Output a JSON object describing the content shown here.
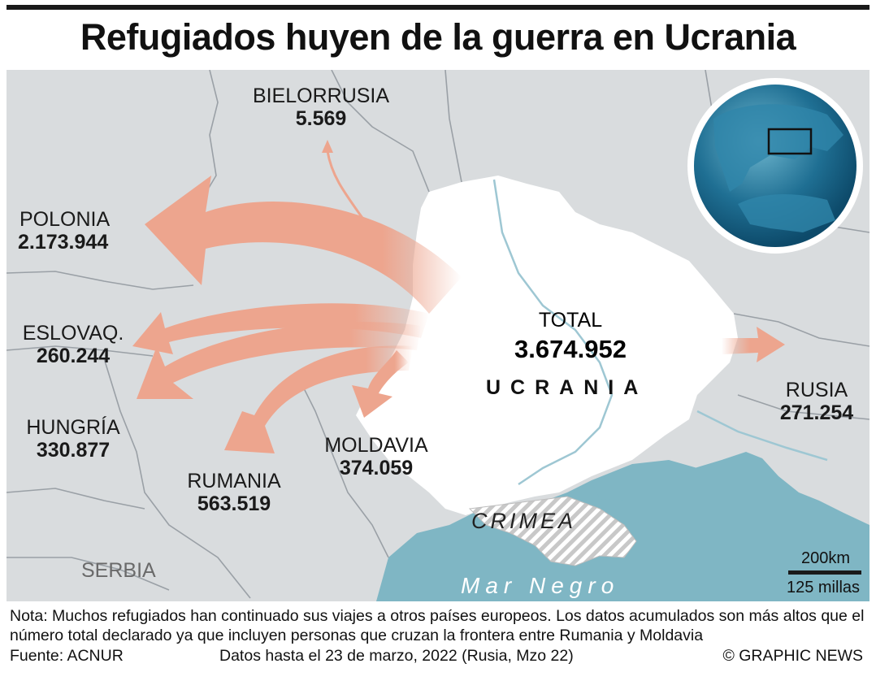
{
  "title": "Refugiados huyen de la guerra en Ucrania",
  "countries": {
    "belarus": {
      "name": "BIELORRUSIA",
      "value": "5.569"
    },
    "poland": {
      "name": "POLONIA",
      "value": "2.173.944"
    },
    "slovakia": {
      "name": "ESLOVAQ.",
      "value": "260.244"
    },
    "hungary": {
      "name": "HUNGRÍA",
      "value": "330.877"
    },
    "romania": {
      "name": "RUMANIA",
      "value": "563.519"
    },
    "moldova": {
      "name": "MOLDAVIA",
      "value": "374.059"
    },
    "russia": {
      "name": "RUSIA",
      "value": "271.254"
    }
  },
  "total": {
    "label": "TOTAL",
    "value": "3.674.952"
  },
  "ukraine_label": "UCRANIA",
  "crimea_label": "CRIMEA",
  "sea_label": "Mar Negro",
  "serbia_label": "SERBIA",
  "scale": {
    "km": "200km",
    "miles": "125 millas"
  },
  "note": "Nota: Muchos refugiados han continuado sus viajes a otros países europeos. Los datos acumulados son más altos que el número total declarado ya que incluyen personas que cruzan la frontera entre Rumania y Moldavia",
  "footer": {
    "source": "Fuente: ACNUR",
    "date": "Datos hasta el 23 de marzo, 2022 (Rusia, Mzo 22)",
    "credit": "© GRAPHIC NEWS"
  },
  "colors": {
    "land": "#d9dcde",
    "ukraine": "#ffffff",
    "sea": "#7fb6c4",
    "arrow": "#eda58e",
    "border": "#9aa0a6"
  }
}
